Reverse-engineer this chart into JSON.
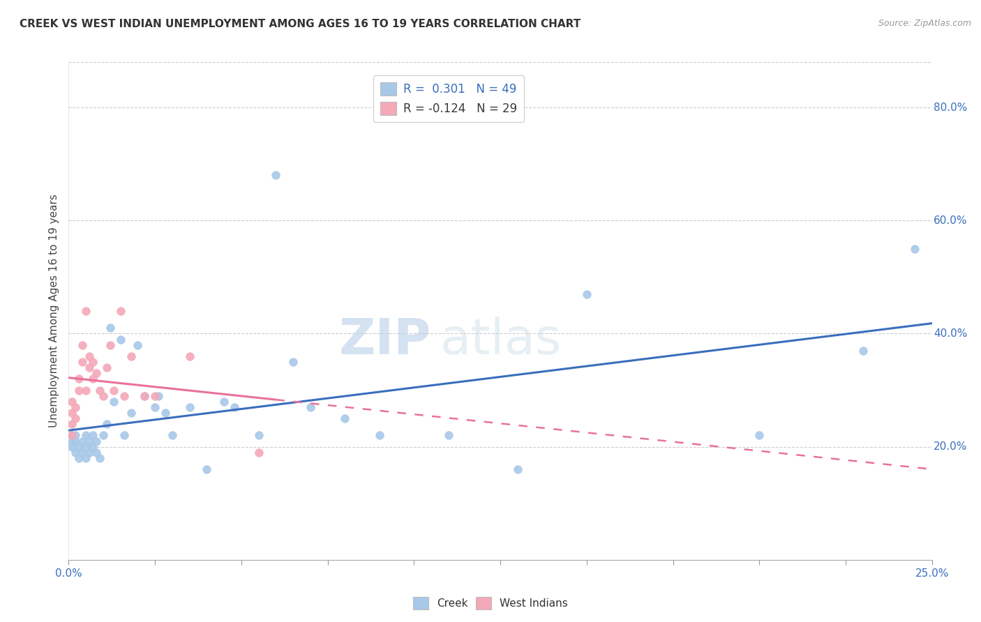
{
  "title": "CREEK VS WEST INDIAN UNEMPLOYMENT AMONG AGES 16 TO 19 YEARS CORRELATION CHART",
  "source": "Source: ZipAtlas.com",
  "ylabel": "Unemployment Among Ages 16 to 19 years",
  "right_yticks": [
    "80.0%",
    "60.0%",
    "40.0%",
    "20.0%"
  ],
  "right_ytick_vals": [
    0.8,
    0.6,
    0.4,
    0.2
  ],
  "xlim": [
    0.0,
    0.25
  ],
  "ylim": [
    0.0,
    0.88
  ],
  "creek_color": "#a8c8e8",
  "west_indian_color": "#f4a8b8",
  "creek_line_color": "#3a6ebd",
  "west_indian_line_color": "#e8729a",
  "legend_creek_label": "R =  0.301   N = 49",
  "legend_west_label": "R = -0.124   N = 29",
  "creek_x": [
    0.001,
    0.001,
    0.001,
    0.002,
    0.002,
    0.002,
    0.003,
    0.003,
    0.004,
    0.004,
    0.005,
    0.005,
    0.005,
    0.006,
    0.006,
    0.007,
    0.007,
    0.008,
    0.008,
    0.009,
    0.01,
    0.011,
    0.012,
    0.013,
    0.015,
    0.016,
    0.018,
    0.02,
    0.022,
    0.025,
    0.026,
    0.028,
    0.03,
    0.035,
    0.04,
    0.045,
    0.048,
    0.055,
    0.06,
    0.065,
    0.07,
    0.08,
    0.09,
    0.11,
    0.13,
    0.15,
    0.2,
    0.23,
    0.245
  ],
  "creek_y": [
    0.21,
    0.22,
    0.2,
    0.21,
    0.19,
    0.22,
    0.2,
    0.18,
    0.21,
    0.19,
    0.22,
    0.2,
    0.18,
    0.21,
    0.19,
    0.22,
    0.2,
    0.21,
    0.19,
    0.18,
    0.22,
    0.24,
    0.41,
    0.28,
    0.39,
    0.22,
    0.26,
    0.38,
    0.29,
    0.27,
    0.29,
    0.26,
    0.22,
    0.27,
    0.16,
    0.28,
    0.27,
    0.22,
    0.68,
    0.35,
    0.27,
    0.25,
    0.22,
    0.22,
    0.16,
    0.47,
    0.22,
    0.37,
    0.55
  ],
  "west_x": [
    0.001,
    0.001,
    0.001,
    0.001,
    0.002,
    0.002,
    0.003,
    0.003,
    0.004,
    0.004,
    0.005,
    0.005,
    0.006,
    0.006,
    0.007,
    0.007,
    0.008,
    0.009,
    0.01,
    0.011,
    0.012,
    0.013,
    0.015,
    0.016,
    0.018,
    0.022,
    0.025,
    0.035,
    0.055
  ],
  "west_y": [
    0.22,
    0.24,
    0.26,
    0.28,
    0.25,
    0.27,
    0.3,
    0.32,
    0.35,
    0.38,
    0.3,
    0.44,
    0.36,
    0.34,
    0.32,
    0.35,
    0.33,
    0.3,
    0.29,
    0.34,
    0.38,
    0.3,
    0.44,
    0.29,
    0.36,
    0.29,
    0.29,
    0.36,
    0.19
  ],
  "background_color": "#ffffff",
  "grid_color": "#cccccc"
}
